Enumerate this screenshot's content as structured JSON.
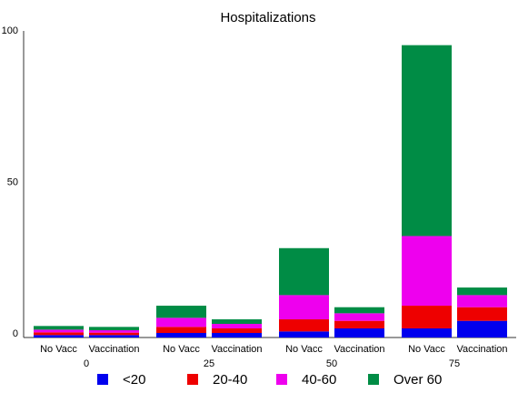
{
  "chart_data": {
    "type": "bar",
    "stacked": true,
    "title": "Hospitalizations",
    "xlabel": "",
    "ylabel": "",
    "ylim": [
      0,
      100
    ],
    "yticks": [
      0,
      50,
      100
    ],
    "groups": [
      "0",
      "25",
      "50",
      "75"
    ],
    "categories": [
      "No Vacc",
      "Vaccination"
    ],
    "series": [
      {
        "name": "<20",
        "color": "#0000ee",
        "values": [
          [
            0.8,
            0.8
          ],
          [
            1.5,
            1.5
          ],
          [
            2,
            3
          ],
          [
            3,
            5.5
          ]
        ]
      },
      {
        "name": "20-40",
        "color": "#ee0000",
        "values": [
          [
            0.9,
            0.8
          ],
          [
            2,
            1.5
          ],
          [
            4,
            2.5
          ],
          [
            7.5,
            4.5
          ]
        ]
      },
      {
        "name": "40-60",
        "color": "#ee00ee",
        "values": [
          [
            0.9,
            0.8
          ],
          [
            3,
            1.5
          ],
          [
            8,
            2.5
          ],
          [
            23,
            4
          ]
        ]
      },
      {
        "name": "Over 60",
        "color": "#008c45",
        "values": [
          [
            1.2,
            1.1
          ],
          [
            4,
            1.5
          ],
          [
            15.5,
            2
          ],
          [
            63,
            2.5
          ]
        ]
      }
    ],
    "grid": false,
    "legend_position": "bottom"
  }
}
